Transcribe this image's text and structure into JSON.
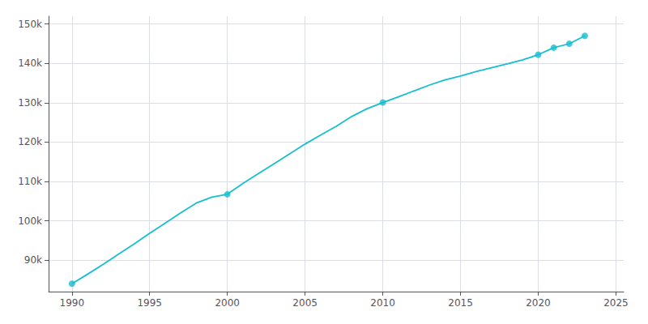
{
  "chart_data": {
    "type": "line",
    "series": [
      {
        "type": "line",
        "marker": "none",
        "color": "#17becf",
        "x": [
          1990,
          1991,
          1992,
          1993,
          1994,
          1995,
          1996,
          1997,
          1998,
          1999,
          2000,
          2001,
          2002,
          2003,
          2004,
          2005,
          2006,
          2007,
          2008,
          2009,
          2010,
          2011,
          2012,
          2013,
          2014,
          2015,
          2016,
          2017,
          2018,
          2019,
          2020,
          2021,
          2022,
          2023
        ],
        "values": [
          84021,
          86400,
          88900,
          91500,
          94100,
          96800,
          99400,
          102000,
          104500,
          106000,
          106735,
          109500,
          112000,
          114500,
          117000,
          119500,
          121800,
          124000,
          126500,
          128500,
          130058,
          131500,
          133000,
          134500,
          135800,
          136800,
          137900,
          138900,
          139900,
          140900,
          142212,
          144000,
          145000,
          147000
        ]
      },
      {
        "type": "scatter",
        "marker": "circle",
        "color": "#17becf",
        "x": [
          1990,
          2000,
          2010,
          2020,
          2021,
          2022,
          2023
        ],
        "values": [
          84021,
          106735,
          130058,
          142212,
          144000,
          145000,
          147000
        ]
      }
    ],
    "xlim": [
      1988.5,
      2025.5
    ],
    "xticks": [
      1990,
      1995,
      2000,
      2005,
      2010,
      2015,
      2020,
      2025
    ],
    "ylim": [
      82000,
      152000
    ],
    "yticks": [
      {
        "value": 90000,
        "label": "90k"
      },
      {
        "value": 100000,
        "label": "100k"
      },
      {
        "value": 110000,
        "label": "110k"
      },
      {
        "value": 120000,
        "label": "120k"
      },
      {
        "value": 130000,
        "label": "130k"
      },
      {
        "value": 140000,
        "label": "140k"
      },
      {
        "value": 150000,
        "label": "150k"
      }
    ],
    "grid": true
  }
}
